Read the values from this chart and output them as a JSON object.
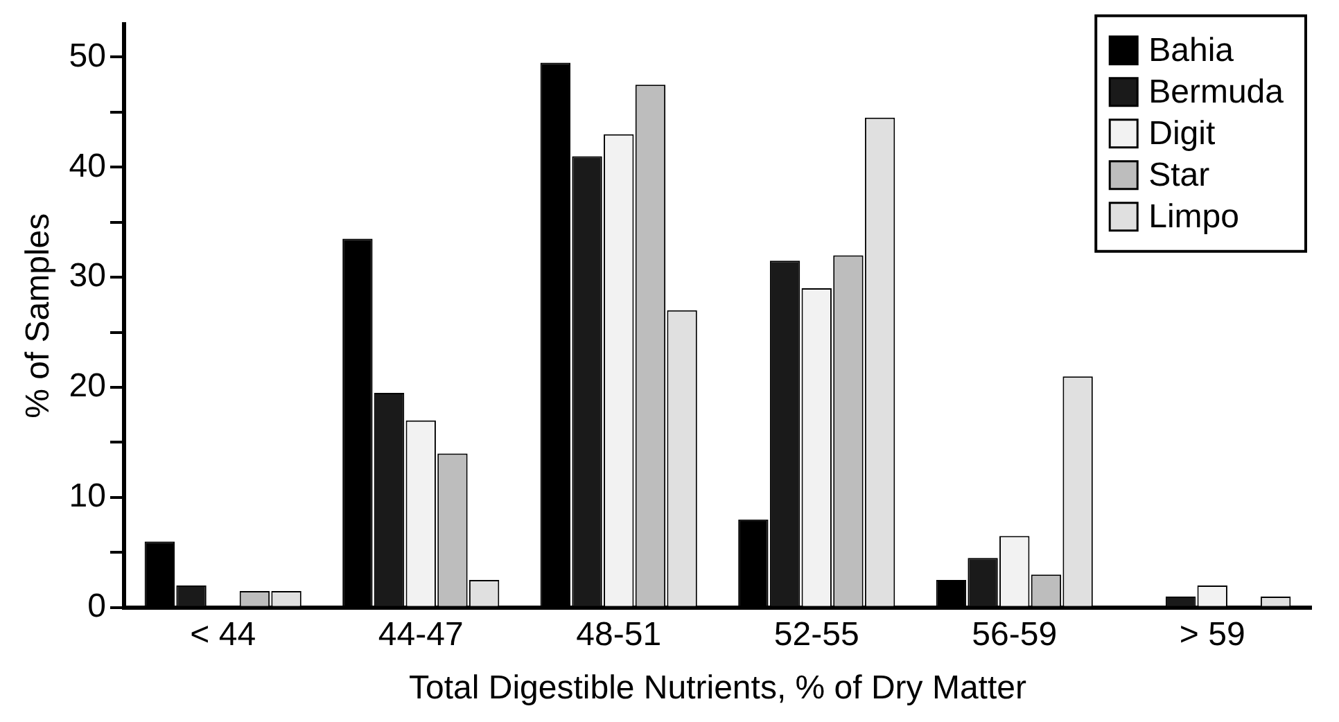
{
  "chart_data": {
    "type": "bar",
    "xlabel": "Total Digestible Nutrients, % of Dry Matter",
    "ylabel": "% of Samples",
    "categories": [
      "< 44",
      "44-47",
      "48-51",
      "52-55",
      "56-59",
      "> 59"
    ],
    "series": [
      {
        "name": "Bahia",
        "color": "#000000",
        "values": [
          6,
          33.5,
          49.5,
          8,
          2.5,
          0
        ]
      },
      {
        "name": "Bermuda",
        "color": "#1a1a1a",
        "values": [
          2,
          19.5,
          41,
          31.5,
          4.5,
          1
        ]
      },
      {
        "name": "Digit",
        "color": "#f2f2f2",
        "values": [
          0,
          17,
          43,
          29,
          6.5,
          2
        ]
      },
      {
        "name": "Star",
        "color": "#bdbdbd",
        "values": [
          1.5,
          14,
          47.5,
          32,
          3,
          0
        ]
      },
      {
        "name": "Limpo",
        "color": "#e0e0e0",
        "values": [
          1.5,
          2.5,
          27,
          44.5,
          21,
          1
        ]
      }
    ],
    "ylim": [
      0,
      53
    ],
    "yticks": [
      0,
      {
        "value": 5,
        "label": null
      },
      10,
      {
        "value": 15,
        "label": null
      },
      20,
      {
        "value": 25,
        "label": null
      },
      30,
      {
        "value": 35,
        "label": null
      },
      40,
      {
        "value": 45,
        "label": null
      },
      50
    ],
    "grid": false,
    "legend": "top right"
  }
}
